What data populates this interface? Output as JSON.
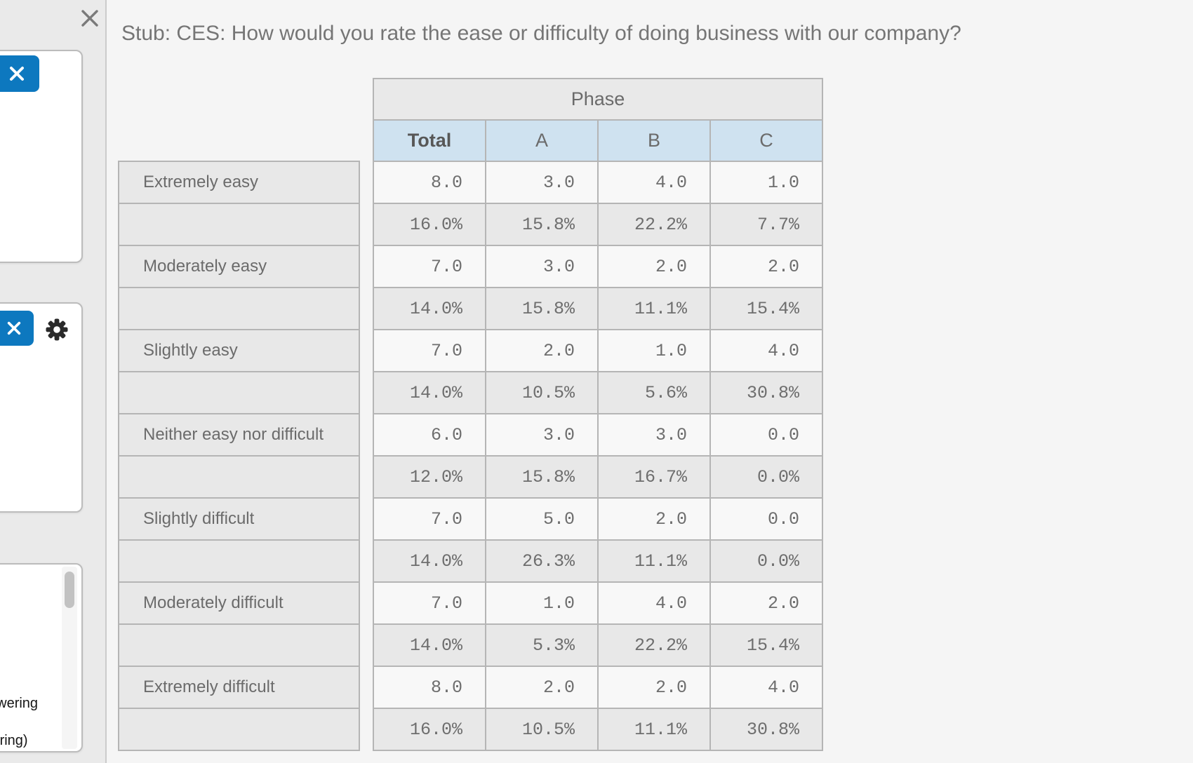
{
  "sidebar": {
    "icons": {
      "close": "x",
      "remove": "x",
      "settings": "gear"
    },
    "card3_fragments": [
      "nswering",
      "wering)"
    ]
  },
  "main": {
    "title": "Stub: CES: How would you rate the ease or difficulty of doing business with our company?",
    "table": {
      "column_group_label": "Phase",
      "columns": [
        "Total",
        "A",
        "B",
        "C"
      ],
      "rows": [
        {
          "label": "Extremely easy",
          "type": "count",
          "values": [
            "8.0",
            "3.0",
            "4.0",
            "1.0"
          ]
        },
        {
          "label": "",
          "type": "percent",
          "values": [
            "16.0%",
            "15.8%",
            "22.2%",
            "7.7%"
          ]
        },
        {
          "label": "Moderately easy",
          "type": "count",
          "values": [
            "7.0",
            "3.0",
            "2.0",
            "2.0"
          ]
        },
        {
          "label": "",
          "type": "percent",
          "values": [
            "14.0%",
            "15.8%",
            "11.1%",
            "15.4%"
          ]
        },
        {
          "label": "Slightly easy",
          "type": "count",
          "values": [
            "7.0",
            "2.0",
            "1.0",
            "4.0"
          ]
        },
        {
          "label": "",
          "type": "percent",
          "values": [
            "14.0%",
            "10.5%",
            "5.6%",
            "30.8%"
          ]
        },
        {
          "label": "Neither easy nor difficult",
          "type": "count",
          "values": [
            "6.0",
            "3.0",
            "3.0",
            "0.0"
          ]
        },
        {
          "label": "",
          "type": "percent",
          "values": [
            "12.0%",
            "15.8%",
            "16.7%",
            "0.0%"
          ]
        },
        {
          "label": "Slightly difficult",
          "type": "count",
          "values": [
            "7.0",
            "5.0",
            "2.0",
            "0.0"
          ]
        },
        {
          "label": "",
          "type": "percent",
          "values": [
            "14.0%",
            "26.3%",
            "11.1%",
            "0.0%"
          ]
        },
        {
          "label": "Moderately difficult",
          "type": "count",
          "values": [
            "7.0",
            "1.0",
            "4.0",
            "2.0"
          ]
        },
        {
          "label": "",
          "type": "percent",
          "values": [
            "14.0%",
            "5.3%",
            "22.2%",
            "15.4%"
          ]
        },
        {
          "label": "Extremely difficult",
          "type": "count",
          "values": [
            "8.0",
            "2.0",
            "2.0",
            "4.0"
          ]
        },
        {
          "label": "",
          "type": "percent",
          "values": [
            "16.0%",
            "10.5%",
            "11.1%",
            "30.8%"
          ]
        }
      ]
    }
  },
  "colors": {
    "accent_blue": "#0d78bf",
    "header_blue": "#cfe2f0"
  }
}
